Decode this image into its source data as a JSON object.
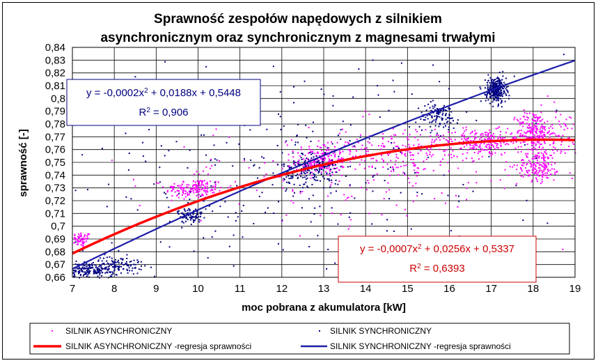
{
  "colors": {
    "async": "#ff00ff",
    "async_regression": "#ff0000",
    "sync": "#000080",
    "sync_regression": "#1c1ca8",
    "grid": "#000000"
  },
  "chart_data": {
    "type": "scatter",
    "title": [
      "Sprawność zespołów napędowych z silnikiem",
      "asynchronicznym oraz synchronicznym z magnesami trwałymi"
    ],
    "xlabel": "moc pobrana z akumulatora [kW]",
    "ylabel": "sprawność [-]",
    "xlim": [
      7,
      19
    ],
    "ylim": [
      0.66,
      0.84
    ],
    "x_ticks": [
      "7",
      "8",
      "9",
      "10",
      "11",
      "12",
      "13",
      "14",
      "15",
      "16",
      "17",
      "18",
      "19"
    ],
    "y_ticks": [
      "0,66",
      "0,67",
      "0,68",
      "0,69",
      "0,7",
      "0,71",
      "0,72",
      "0,73",
      "0,74",
      "0,75",
      "0,76",
      "0,77",
      "0,78",
      "0,79",
      "0,8",
      "0,81",
      "0,82",
      "0,83",
      "0,84"
    ],
    "grid": true,
    "legend_position": "bottom",
    "series": [
      {
        "name": "SILNIK ASYNCHRONICZNY",
        "kind": "scatter",
        "clusters": [
          {
            "x": 7.2,
            "y": 0.69,
            "sx": 0.12,
            "sy": 0.003,
            "n": 60
          },
          {
            "x": 9.9,
            "y": 0.73,
            "sx": 0.35,
            "sy": 0.004,
            "n": 160
          },
          {
            "x": 12.9,
            "y": 0.752,
            "sx": 0.3,
            "sy": 0.006,
            "n": 200
          },
          {
            "x": 15.0,
            "y": 0.76,
            "sx": 0.9,
            "sy": 0.008,
            "n": 220
          },
          {
            "x": 16.8,
            "y": 0.766,
            "sx": 0.4,
            "sy": 0.005,
            "n": 200
          },
          {
            "x": 18.0,
            "y": 0.775,
            "sx": 0.2,
            "sy": 0.008,
            "n": 200
          },
          {
            "x": 18.1,
            "y": 0.748,
            "sx": 0.25,
            "sy": 0.006,
            "n": 160
          },
          {
            "x": 18.6,
            "y": 0.77,
            "sx": 0.4,
            "sy": 0.012,
            "n": 120
          },
          {
            "x": 13.5,
            "y": 0.74,
            "sx": 2.5,
            "sy": 0.02,
            "n": 150
          }
        ]
      },
      {
        "name": "SILNIK SYNCHRONICZNY",
        "kind": "scatter",
        "clusters": [
          {
            "x": 7.4,
            "y": 0.666,
            "sx": 0.35,
            "sy": 0.003,
            "n": 220
          },
          {
            "x": 8.1,
            "y": 0.671,
            "sx": 0.3,
            "sy": 0.003,
            "n": 90
          },
          {
            "x": 9.8,
            "y": 0.709,
            "sx": 0.15,
            "sy": 0.003,
            "n": 90
          },
          {
            "x": 12.7,
            "y": 0.745,
            "sx": 0.35,
            "sy": 0.007,
            "n": 180
          },
          {
            "x": 15.7,
            "y": 0.787,
            "sx": 0.25,
            "sy": 0.005,
            "n": 120
          },
          {
            "x": 17.1,
            "y": 0.807,
            "sx": 0.12,
            "sy": 0.005,
            "n": 300
          },
          {
            "x": 12.0,
            "y": 0.745,
            "sx": 3.5,
            "sy": 0.04,
            "n": 300
          }
        ]
      },
      {
        "name": "SILNIK ASYNCHRONICZNY -regresja sprawności",
        "kind": "line",
        "coefficients": [
          -0.0007,
          0.0256,
          0.5337
        ]
      },
      {
        "name": "SILNIK SYNCHRONICZNY -regresja sprawności",
        "kind": "line",
        "coefficients": [
          -0.0002,
          0.0188,
          0.5448
        ]
      }
    ],
    "annotations": [
      {
        "series": "SILNIK SYNCHRONICZNY",
        "pre": "y = -0,0002x",
        "post": " + 0,0188x + 0,5448",
        "r2": " = 0,906"
      },
      {
        "series": "SILNIK ASYNCHRONICZNY",
        "pre": "y = -0,0007x",
        "post": " + 0,0256x + 0,5337",
        "r2": " = 0,6393"
      }
    ]
  }
}
